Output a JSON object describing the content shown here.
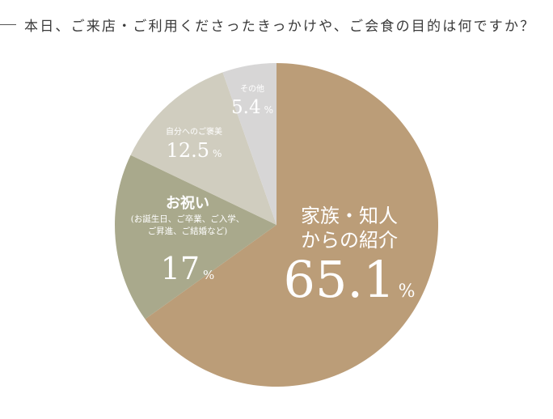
{
  "question": "本日、ご来店・ご利用くださったきっかけや、ご会食の目的は何ですか？",
  "chart_data": {
    "type": "pie",
    "start": "top",
    "direction": "clockwise",
    "slices": [
      {
        "label_lines": [
          "家族・知人",
          "からの紹介"
        ],
        "value": 65.1,
        "display": "65.1",
        "unit": "%",
        "color": "#bb9d78"
      },
      {
        "label_lines": [
          "お祝い"
        ],
        "sub_lines": [
          "(お誕生日、ご卒業、ご入学、",
          "ご昇進、ご結婚など)"
        ],
        "value": 17,
        "display": "17",
        "unit": "%",
        "color": "#a9a98c"
      },
      {
        "label_lines": [
          "自分へのご褒美"
        ],
        "value": 12.5,
        "display": "12.5",
        "unit": "%",
        "color": "#d0cdbf"
      },
      {
        "label_lines": [
          "その他"
        ],
        "value": 5.4,
        "display": "5.4",
        "unit": "%",
        "color": "#d7d6d6"
      }
    ]
  }
}
